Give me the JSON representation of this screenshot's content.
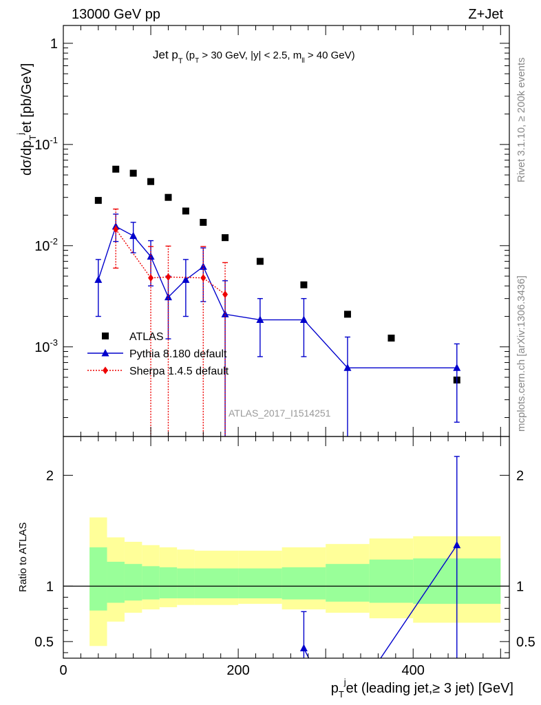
{
  "header": {
    "left": "13000 GeV pp",
    "right": "Z+Jet"
  },
  "side_labels": {
    "rivet": "Rivet 3.1.10, ≥ 200k events",
    "mcplots": "mcplots.cern.ch [arXiv:1306.3436]"
  },
  "watermark": "ATLAS_2017_I1514251",
  "colors": {
    "atlas": "#000000",
    "pythia": "#0000cc",
    "sherpa": "#ee0000",
    "band_inner": "#99ff99",
    "band_outer": "#ffff99"
  },
  "chart_data": [
    {
      "type": "scatter",
      "title": "Jet p_T (p_T > 30 GeV, |y| < 2.5, m_ll > 40 GeV)",
      "ylabel": "dσ/dp_T^j et [pb/GeV]",
      "yscale": "log",
      "ylim": [
        0.00013,
        1.5
      ],
      "xlim": [
        0,
        510
      ],
      "yticks": [
        {
          "v": 1,
          "label": "1"
        },
        {
          "v": 0.1,
          "label": "10^-1"
        },
        {
          "v": 0.01,
          "label": "10^-2"
        },
        {
          "v": 0.001,
          "label": "10^-3"
        }
      ],
      "series": [
        {
          "name": "ATLAS",
          "style": "square",
          "points": [
            {
              "x": 40,
              "y": 0.028
            },
            {
              "x": 60,
              "y": 0.057
            },
            {
              "x": 80,
              "y": 0.052
            },
            {
              "x": 100,
              "y": 0.043
            },
            {
              "x": 120,
              "y": 0.03
            },
            {
              "x": 140,
              "y": 0.022
            },
            {
              "x": 160,
              "y": 0.017
            },
            {
              "x": 185,
              "y": 0.012
            },
            {
              "x": 225,
              "y": 0.007
            },
            {
              "x": 275,
              "y": 0.0041
            },
            {
              "x": 325,
              "y": 0.0021
            },
            {
              "x": 375,
              "y": 0.00122
            },
            {
              "x": 450,
              "y": 0.00047
            }
          ]
        },
        {
          "name": "Pythia 8.180 default",
          "style": "triangle",
          "points": [
            {
              "x": 40,
              "y": 0.0046,
              "lo": 0.002,
              "hi": 0.0073
            },
            {
              "x": 60,
              "y": 0.0155,
              "lo": 0.011,
              "hi": 0.0205
            },
            {
              "x": 80,
              "y": 0.0125,
              "lo": 0.0085,
              "hi": 0.017
            },
            {
              "x": 100,
              "y": 0.0078,
              "lo": 0.004,
              "hi": 0.0112
            },
            {
              "x": 120,
              "y": 0.0031,
              "lo": 0.0012,
              "hi": 0.005
            },
            {
              "x": 140,
              "y": 0.0046,
              "lo": 0.002,
              "hi": 0.0073
            },
            {
              "x": 160,
              "y": 0.0062,
              "lo": 0.0028,
              "hi": 0.0095
            },
            {
              "x": 185,
              "y": 0.0021,
              "lo": 0.0001,
              "hi": 0.0045
            },
            {
              "x": 225,
              "y": 0.00185,
              "lo": 0.0008,
              "hi": 0.003
            },
            {
              "x": 275,
              "y": 0.00185,
              "lo": 0.0008,
              "hi": 0.003
            },
            {
              "x": 325,
              "y": 0.00062,
              "lo": 0.0001,
              "hi": 0.00125
            },
            {
              "x": 450,
              "y": 0.00062,
              "lo": 0.00018,
              "hi": 0.00107
            }
          ]
        },
        {
          "name": "Sherpa 1.4.5 default",
          "style": "diamond",
          "points": [
            {
              "x": 60,
              "y": 0.0145,
              "lo": 0.006,
              "hi": 0.023
            },
            {
              "x": 100,
              "y": 0.0048,
              "lo": 0.0001,
              "hi": 0.0098
            },
            {
              "x": 120,
              "y": 0.0049,
              "lo": 0.0001,
              "hi": 0.0099
            },
            {
              "x": 160,
              "y": 0.0048,
              "lo": 0.0001,
              "hi": 0.0098
            },
            {
              "x": 185,
              "y": 0.0033,
              "lo": 0.0001,
              "hi": 0.0068
            }
          ]
        }
      ]
    },
    {
      "type": "line",
      "ylabel": "Ratio to ATLAS",
      "xlabel": "p_T^j et (leading jet,≥ 3 jet) [GeV]",
      "xlim": [
        0,
        510
      ],
      "ylim": [
        0.35,
        2.35
      ],
      "xticks": [
        0,
        200,
        400
      ],
      "yticks": [
        0.5,
        1,
        2
      ],
      "reference": 1,
      "bands": [
        {
          "x0": 30,
          "x1": 50,
          "in_lo": 0.78,
          "in_hi": 1.35,
          "out_lo": 0.46,
          "out_hi": 1.62
        },
        {
          "x0": 50,
          "x1": 70,
          "in_lo": 0.85,
          "in_hi": 1.22,
          "out_lo": 0.68,
          "out_hi": 1.44
        },
        {
          "x0": 70,
          "x1": 90,
          "in_lo": 0.87,
          "in_hi": 1.2,
          "out_lo": 0.76,
          "out_hi": 1.4
        },
        {
          "x0": 90,
          "x1": 110,
          "in_lo": 0.88,
          "in_hi": 1.18,
          "out_lo": 0.79,
          "out_hi": 1.37
        },
        {
          "x0": 110,
          "x1": 130,
          "in_lo": 0.89,
          "in_hi": 1.17,
          "out_lo": 0.81,
          "out_hi": 1.35
        },
        {
          "x0": 130,
          "x1": 150,
          "in_lo": 0.89,
          "in_hi": 1.16,
          "out_lo": 0.83,
          "out_hi": 1.33
        },
        {
          "x0": 150,
          "x1": 170,
          "in_lo": 0.89,
          "in_hi": 1.16,
          "out_lo": 0.83,
          "out_hi": 1.32
        },
        {
          "x0": 170,
          "x1": 200,
          "in_lo": 0.89,
          "in_hi": 1.16,
          "out_lo": 0.83,
          "out_hi": 1.32
        },
        {
          "x0": 200,
          "x1": 250,
          "in_lo": 0.89,
          "in_hi": 1.16,
          "out_lo": 0.84,
          "out_hi": 1.32
        },
        {
          "x0": 250,
          "x1": 300,
          "in_lo": 0.88,
          "in_hi": 1.17,
          "out_lo": 0.79,
          "out_hi": 1.35
        },
        {
          "x0": 300,
          "x1": 350,
          "in_lo": 0.86,
          "in_hi": 1.2,
          "out_lo": 0.76,
          "out_hi": 1.38
        },
        {
          "x0": 350,
          "x1": 400,
          "in_lo": 0.85,
          "in_hi": 1.24,
          "out_lo": 0.71,
          "out_hi": 1.43
        },
        {
          "x0": 400,
          "x1": 500,
          "in_lo": 0.84,
          "in_hi": 1.25,
          "out_lo": 0.67,
          "out_hi": 1.45
        }
      ],
      "series": [
        {
          "name": "Pythia 8.180 default",
          "points": [
            {
              "x": 275,
              "y": 0.44,
              "lo": 0.2,
              "hi": 0.77
            },
            {
              "x": 290,
              "y": 0.2
            },
            {
              "x": 350,
              "y": 0.2
            },
            {
              "x": 450,
              "y": 1.37,
              "lo": 0.2,
              "hi": 2.17
            }
          ]
        }
      ]
    }
  ]
}
